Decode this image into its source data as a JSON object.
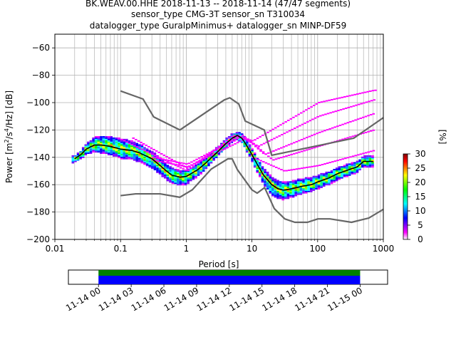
{
  "chart_data": {
    "type": "heatmap",
    "title_lines": [
      "BK.WEAV.00.HHE   2018-11-13 -- 2018-11-14  (47/47 segments)",
      "sensor_type CMG-3T sensor_sn T310034",
      "datalogger_type GuralpMinimus+ datalogger_sn MINP-DF59"
    ],
    "xlabel": "Period [s]",
    "ylabel_parts": {
      "pre": "Power [m",
      "sup1": "2",
      "mid": "/s",
      "sup2": "4",
      "post": "/Hz] [dB]"
    },
    "x_scale": "log",
    "xlim": [
      0.01,
      1000
    ],
    "ylim": [
      -200,
      -50
    ],
    "x_ticks": [
      {
        "v": 0.01,
        "label": "0.01"
      },
      {
        "v": 0.1,
        "label": "0.1"
      },
      {
        "v": 1,
        "label": "1"
      },
      {
        "v": 10,
        "label": "10"
      },
      {
        "v": 100,
        "label": "100"
      },
      {
        "v": 1000,
        "label": "1000"
      }
    ],
    "y_ticks": [
      {
        "v": -60,
        "label": "−60"
      },
      {
        "v": -80,
        "label": "−80"
      },
      {
        "v": -100,
        "label": "−100"
      },
      {
        "v": -120,
        "label": "−120"
      },
      {
        "v": -140,
        "label": "−140"
      },
      {
        "v": -160,
        "label": "−160"
      },
      {
        "v": -180,
        "label": "−180"
      },
      {
        "v": -200,
        "label": "−200"
      }
    ],
    "grid": true,
    "noise_model_color": "#666666",
    "high_noise_model": [
      [
        0.1,
        -91.5
      ],
      [
        0.22,
        -97.4
      ],
      [
        0.32,
        -110.5
      ],
      [
        0.8,
        -120
      ],
      [
        3.8,
        -98
      ],
      [
        4.6,
        -96.5
      ],
      [
        6.3,
        -101
      ],
      [
        7.9,
        -113.5
      ],
      [
        15.4,
        -120
      ],
      [
        20,
        -138.5
      ],
      [
        354.8,
        -126
      ],
      [
        1000,
        -111
      ]
    ],
    "low_noise_model": [
      [
        0.1,
        -168
      ],
      [
        0.17,
        -166.7
      ],
      [
        0.4,
        -166.7
      ],
      [
        0.8,
        -169.2
      ],
      [
        1.24,
        -163.7
      ],
      [
        2.4,
        -148.6
      ],
      [
        4.3,
        -141.1
      ],
      [
        5,
        -141.1
      ],
      [
        6,
        -149
      ],
      [
        10,
        -163.8
      ],
      [
        12,
        -166.2
      ],
      [
        15.6,
        -162.1
      ],
      [
        21.9,
        -177.5
      ],
      [
        31.6,
        -185
      ],
      [
        45,
        -187.5
      ],
      [
        70,
        -187.5
      ],
      [
        101,
        -185
      ],
      [
        154,
        -185
      ],
      [
        328,
        -187.5
      ],
      [
        600,
        -184.4
      ],
      [
        1000,
        -178
      ]
    ],
    "median_curve": [
      [
        0.02,
        -141
      ],
      [
        0.025,
        -138
      ],
      [
        0.03,
        -134
      ],
      [
        0.04,
        -131
      ],
      [
        0.05,
        -131
      ],
      [
        0.07,
        -132
      ],
      [
        0.1,
        -134
      ],
      [
        0.15,
        -135
      ],
      [
        0.2,
        -137
      ],
      [
        0.3,
        -141
      ],
      [
        0.4,
        -146
      ],
      [
        0.5,
        -150
      ],
      [
        0.6,
        -153
      ],
      [
        0.8,
        -154.5
      ],
      [
        1,
        -154
      ],
      [
        1.5,
        -149
      ],
      [
        2,
        -144
      ],
      [
        3,
        -136
      ],
      [
        4,
        -130
      ],
      [
        5,
        -126
      ],
      [
        6,
        -124
      ],
      [
        7,
        -126
      ],
      [
        8,
        -130
      ],
      [
        10,
        -138
      ],
      [
        12,
        -145
      ],
      [
        15,
        -153
      ],
      [
        20,
        -160
      ],
      [
        25,
        -163
      ],
      [
        30,
        -164
      ],
      [
        40,
        -163
      ],
      [
        60,
        -161
      ],
      [
        80,
        -160
      ],
      [
        100,
        -158
      ],
      [
        150,
        -155
      ],
      [
        200,
        -152
      ],
      [
        300,
        -149
      ],
      [
        400,
        -147
      ],
      [
        500,
        -143
      ],
      [
        700,
        -143
      ]
    ],
    "spread_above": [
      [
        0.02,
        2
      ],
      [
        0.05,
        7
      ],
      [
        0.1,
        8
      ],
      [
        0.3,
        6
      ],
      [
        1,
        5
      ],
      [
        3,
        4
      ],
      [
        6,
        3
      ],
      [
        10,
        5
      ],
      [
        20,
        6
      ],
      [
        50,
        6
      ],
      [
        150,
        5
      ],
      [
        700,
        4
      ]
    ],
    "spread_below": [
      [
        0.02,
        3
      ],
      [
        0.05,
        6
      ],
      [
        0.1,
        7
      ],
      [
        0.3,
        7
      ],
      [
        1,
        6
      ],
      [
        3,
        4
      ],
      [
        6,
        3
      ],
      [
        10,
        5
      ],
      [
        20,
        8
      ],
      [
        50,
        6
      ],
      [
        150,
        5
      ],
      [
        700,
        4
      ]
    ],
    "outlier_curves": [
      [
        [
          0.1,
          -127
        ],
        [
          1,
          -150
        ],
        [
          5,
          -124
        ],
        [
          10,
          -128
        ],
        [
          100,
          -100
        ],
        [
          700,
          -91
        ]
      ],
      [
        [
          0.15,
          -126
        ],
        [
          1,
          -148
        ],
        [
          6,
          -124
        ],
        [
          12,
          -132
        ],
        [
          100,
          -110
        ],
        [
          700,
          -98
        ]
      ],
      [
        [
          0.3,
          -140
        ],
        [
          1,
          -145
        ],
        [
          7,
          -124
        ],
        [
          15,
          -138
        ],
        [
          100,
          -122
        ],
        [
          700,
          -108
        ]
      ],
      [
        [
          0.3,
          -142
        ],
        [
          1,
          -147
        ],
        [
          8,
          -126
        ],
        [
          20,
          -142
        ],
        [
          100,
          -132
        ],
        [
          700,
          -120
        ]
      ],
      [
        [
          10,
          -140
        ],
        [
          30,
          -150
        ],
        [
          100,
          -146
        ],
        [
          700,
          -135
        ]
      ]
    ],
    "colorbar": {
      "label": "[%]",
      "min": 0,
      "max": 30,
      "ticks": [
        {
          "v": 0,
          "label": "0"
        },
        {
          "v": 5,
          "label": "5"
        },
        {
          "v": 10,
          "label": "10"
        },
        {
          "v": 15,
          "label": "15"
        },
        {
          "v": 20,
          "label": "20"
        },
        {
          "v": 25,
          "label": "25"
        },
        {
          "v": 30,
          "label": "30"
        }
      ],
      "colormap": [
        "#ffffff",
        "#ff00ff",
        "#8000ff",
        "#0000ff",
        "#0080ff",
        "#00ffff",
        "#00ff80",
        "#00ff00",
        "#80ff00",
        "#ffff00",
        "#ff8000",
        "#ff0000",
        "#800000"
      ]
    },
    "time_coverage": {
      "range_days": [
        -0.115,
        1.105
      ],
      "data_span_days": [
        0,
        1
      ],
      "coverage_color": "#0000ff",
      "segment_color": "#008000",
      "tick_labels": [
        "11-14 00",
        "11-14 03",
        "11-14 06",
        "11-14 09",
        "11-14 12",
        "11-14 15",
        "11-14 18",
        "11-14 21",
        "11-15 00"
      ]
    }
  }
}
